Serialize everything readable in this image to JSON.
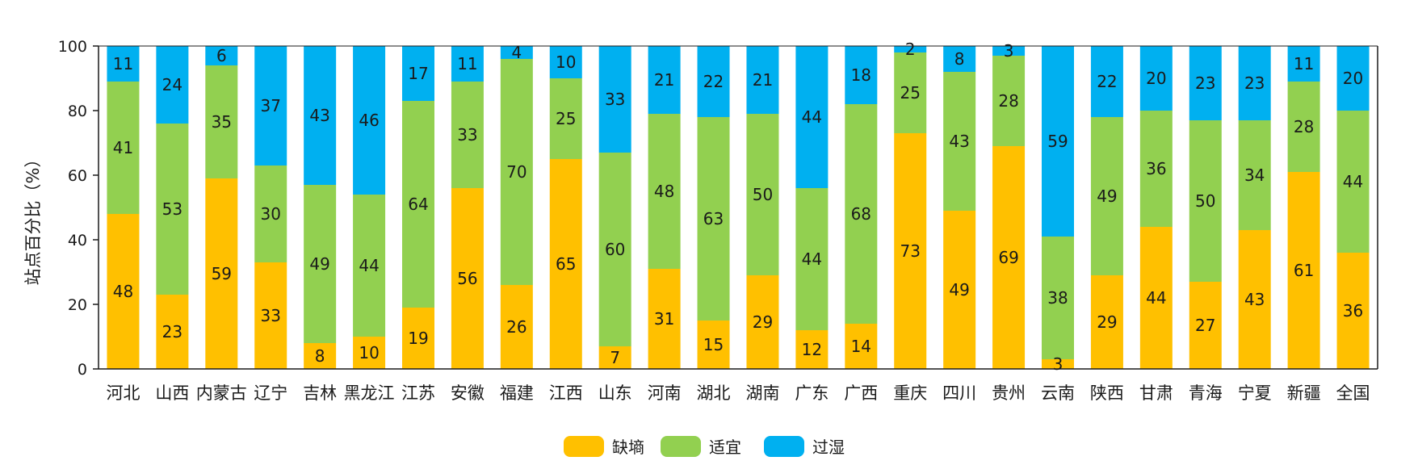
{
  "chart_data": {
    "type": "bar",
    "stacked": true,
    "title": "",
    "xlabel": "",
    "ylabel": "站点百分比（%）",
    "ylim": [
      0,
      100
    ],
    "yticks": [
      0,
      20,
      40,
      60,
      80,
      100
    ],
    "grid": false,
    "legend_position": "bottom-center",
    "categories": [
      "河北",
      "山西",
      "内蒙古",
      "辽宁",
      "吉林",
      "黑龙江",
      "江苏",
      "安徽",
      "福建",
      "江西",
      "山东",
      "河南",
      "湖北",
      "湖南",
      "广东",
      "广西",
      "重庆",
      "四川",
      "贵州",
      "云南",
      "陕西",
      "甘肃",
      "青海",
      "宁夏",
      "新疆",
      "全国"
    ],
    "series": [
      {
        "name": "缺墒",
        "color": "#FFC000",
        "values": [
          48,
          23,
          59,
          33,
          8,
          10,
          19,
          56,
          26,
          65,
          7,
          31,
          15,
          29,
          12,
          14,
          73,
          49,
          69,
          3,
          29,
          44,
          27,
          43,
          61,
          36
        ]
      },
      {
        "name": "适宜",
        "color": "#92D050",
        "values": [
          41,
          53,
          35,
          30,
          49,
          44,
          64,
          33,
          70,
          25,
          60,
          48,
          63,
          50,
          44,
          68,
          25,
          43,
          28,
          38,
          49,
          36,
          50,
          34,
          28,
          44
        ]
      },
      {
        "name": "过湿",
        "color": "#00B0F0",
        "values": [
          11,
          24,
          6,
          37,
          43,
          46,
          17,
          11,
          4,
          10,
          33,
          21,
          22,
          21,
          44,
          18,
          2,
          8,
          3,
          59,
          22,
          20,
          23,
          23,
          11,
          20
        ]
      }
    ]
  }
}
